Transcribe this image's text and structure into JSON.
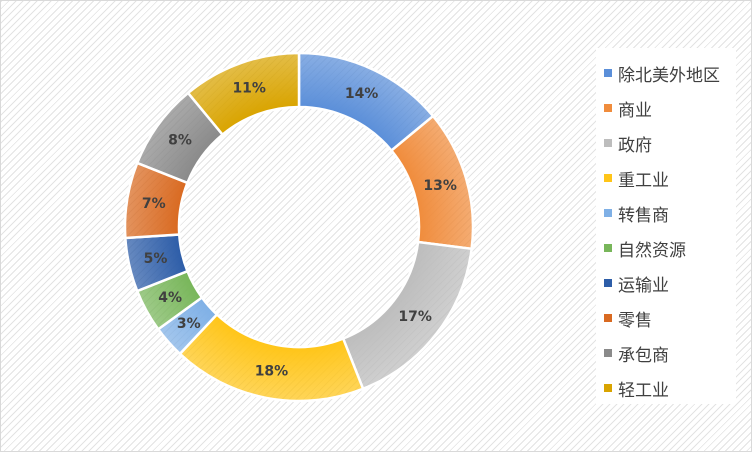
{
  "chart_data": {
    "type": "pie",
    "variant": "donut",
    "title": "",
    "categories": [
      "除北美外地区",
      "商业",
      "政府",
      "重工业",
      "转售商",
      "自然资源",
      "运输业",
      "零售",
      "承包商",
      "轻工业"
    ],
    "values": [
      14,
      13,
      17,
      18,
      3,
      4,
      5,
      7,
      8,
      11
    ],
    "labels": [
      "14%",
      "13%",
      "17%",
      "18%",
      "3%",
      "4%",
      "5%",
      "7%",
      "8%",
      "11%"
    ],
    "colors": [
      "#5b8fd9",
      "#f08c3c",
      "#bdbdbd",
      "#ffc518",
      "#7fb0e6",
      "#78b65a",
      "#2d5da8",
      "#d96a21",
      "#8a8a8a",
      "#d9a400"
    ],
    "legend_position": "right",
    "grid": false
  }
}
